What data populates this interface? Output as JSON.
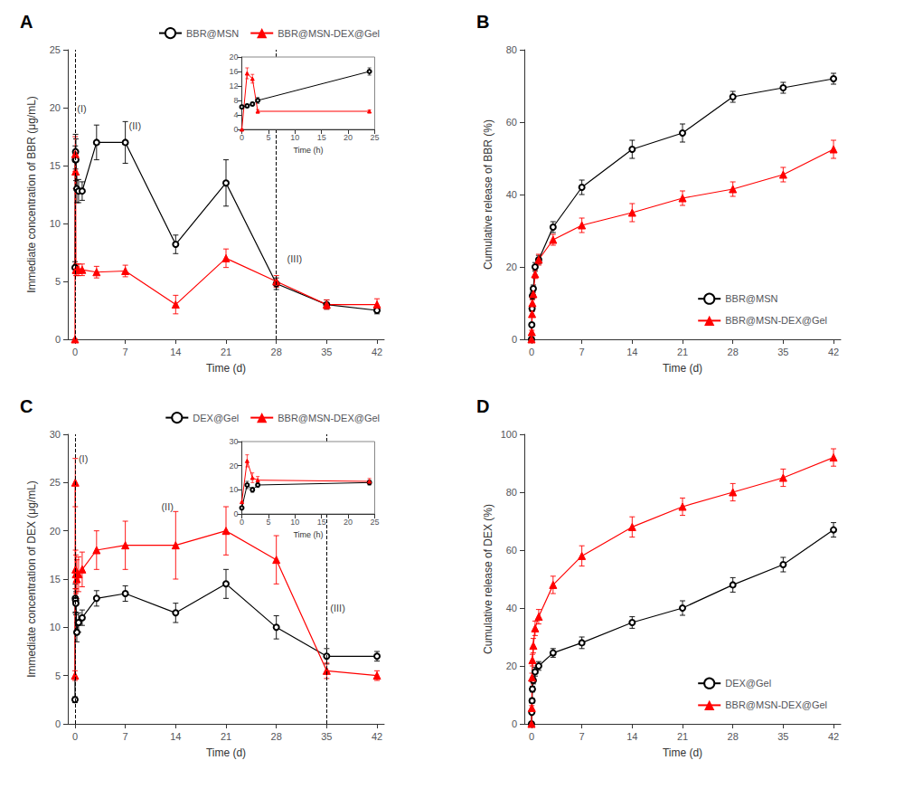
{
  "chart_data": [
    {
      "type": "line",
      "title": "A",
      "xlabel": "Time (d)",
      "ylabel": "Immediate concentration of BBR (μg/mL)",
      "xlim": [
        -1,
        43
      ],
      "xticks": [
        0,
        7,
        14,
        21,
        28,
        35,
        42
      ],
      "ylim": [
        0,
        25
      ],
      "yticks": [
        0,
        5,
        10,
        15,
        20,
        25
      ],
      "grid": false,
      "legend": "upper right",
      "series": [
        {
          "name": "BBR@MSN",
          "color": "black",
          "marker": "open_circle",
          "x": [
            0,
            0.04,
            0.08,
            0.125,
            0.25,
            0.5,
            1,
            3,
            7,
            14,
            21,
            28,
            35,
            42
          ],
          "values": [
            6.2,
            15.5,
            16.2,
            15.5,
            13.0,
            12.8,
            12.8,
            17.0,
            17.0,
            8.2,
            13.5,
            4.8,
            3.0,
            2.5
          ],
          "yerr": [
            0.5,
            1.2,
            1.5,
            1.8,
            1.2,
            1.0,
            0.8,
            1.5,
            1.8,
            0.8,
            2.0,
            0.5,
            0.4,
            0.3
          ]
        },
        {
          "name": "BBR@MSN-DEX@Gel",
          "color": "red",
          "marker": "triangle",
          "x": [
            0,
            0.04,
            0.08,
            0.125,
            0.25,
            0.5,
            1,
            3,
            7,
            14,
            21,
            28,
            35,
            42
          ],
          "values": [
            0.0,
            16.0,
            14.5,
            6.0,
            6.0,
            6.0,
            6.0,
            5.8,
            5.9,
            3.0,
            7.0,
            5.0,
            3.0,
            3.0
          ],
          "yerr": [
            0.0,
            1.5,
            1.5,
            0.5,
            0.5,
            0.5,
            0.5,
            0.5,
            0.5,
            0.8,
            0.8,
            0.5,
            0.4,
            0.5
          ]
        }
      ],
      "annotations": [
        {
          "text": "(I)",
          "x": 0.3,
          "y": 19.5
        },
        {
          "text": "(II)",
          "x": 7.5,
          "y": 18.0
        },
        {
          "text": "(III)",
          "x": 29.5,
          "y": 6.5
        }
      ],
      "vlines": [
        {
          "x": 0.08,
          "line_style": "dashed",
          "color": "black"
        },
        {
          "x": 28,
          "line_style": "dashed",
          "color": "black"
        }
      ],
      "inset": {
        "xlabel": "Time (h)",
        "xlim": [
          0,
          25
        ],
        "xticks": [
          0,
          5,
          10,
          15,
          20,
          25
        ],
        "ylim": [
          0,
          20
        ],
        "yticks": [
          0,
          4,
          8,
          12,
          16,
          20
        ],
        "series": [
          {
            "color": "black",
            "marker": "open_circle",
            "x": [
              0,
              1,
              2,
              3,
              24
            ],
            "values": [
              6.2,
              6.5,
              7.0,
              8.0,
              16.0
            ],
            "yerr": [
              0.5,
              0.5,
              0.5,
              0.8,
              1.0
            ]
          },
          {
            "color": "red",
            "marker": "triangle",
            "x": [
              0,
              1,
              2,
              3,
              24
            ],
            "values": [
              0.0,
              15.5,
              14.0,
              5.0,
              5.0
            ],
            "yerr": [
              0.0,
              1.5,
              1.2,
              0.5,
              0.4
            ]
          }
        ]
      }
    },
    {
      "type": "line",
      "title": "B",
      "xlabel": "Time (d)",
      "ylabel": "Cumulative release of BBR (%)",
      "xlim": [
        -1,
        43
      ],
      "xticks": [
        0,
        7,
        14,
        21,
        28,
        35,
        42
      ],
      "ylim": [
        0,
        80
      ],
      "yticks": [
        0,
        20,
        40,
        60,
        80
      ],
      "grid": false,
      "legend": "lower right",
      "series": [
        {
          "name": "BBR@MSN",
          "color": "black",
          "marker": "open_circle",
          "x": [
            0,
            0.04,
            0.08,
            0.125,
            0.25,
            0.5,
            1,
            3,
            7,
            14,
            21,
            28,
            35,
            42
          ],
          "values": [
            0,
            4.0,
            8.5,
            12.0,
            14.0,
            20.0,
            22.0,
            31.0,
            42.0,
            52.5,
            57.0,
            67.0,
            69.5,
            72.0
          ],
          "yerr": [
            0,
            0.5,
            0.8,
            1.0,
            1.0,
            1.2,
            1.2,
            1.5,
            2.0,
            2.5,
            2.5,
            1.5,
            1.5,
            1.5
          ]
        },
        {
          "name": "BBR@MSN-DEX@Gel",
          "color": "red",
          "marker": "triangle",
          "x": [
            0,
            0.04,
            0.08,
            0.125,
            0.25,
            0.5,
            1,
            3,
            7,
            14,
            21,
            28,
            35,
            42
          ],
          "values": [
            0,
            2.0,
            7.0,
            10.0,
            12.5,
            18.0,
            22.0,
            27.5,
            31.5,
            35.0,
            39.0,
            41.5,
            45.5,
            52.5
          ],
          "yerr": [
            0,
            0.5,
            0.8,
            1.0,
            1.0,
            1.2,
            1.5,
            1.5,
            2.0,
            2.5,
            2.0,
            2.0,
            2.0,
            2.5
          ]
        }
      ]
    },
    {
      "type": "line",
      "title": "C",
      "xlabel": "Time (d)",
      "ylabel": "Immediate concentration of DEX (μg/mL)",
      "xlim": [
        -1,
        43
      ],
      "xticks": [
        0,
        7,
        14,
        21,
        28,
        35,
        42
      ],
      "ylim": [
        0,
        30
      ],
      "yticks": [
        0,
        5,
        10,
        15,
        20,
        25,
        30
      ],
      "grid": false,
      "legend": "upper right",
      "series": [
        {
          "name": "DEX@Gel",
          "color": "black",
          "marker": "open_circle",
          "x": [
            0,
            0.04,
            0.08,
            0.125,
            0.25,
            0.5,
            1,
            3,
            7,
            14,
            21,
            28,
            35,
            42
          ],
          "values": [
            2.5,
            13.0,
            12.8,
            12.5,
            9.5,
            10.5,
            11.0,
            13.0,
            13.5,
            11.5,
            14.5,
            10.0,
            7.0,
            7.0
          ],
          "yerr": [
            0.3,
            1.5,
            1.2,
            1.2,
            1.0,
            1.0,
            0.8,
            0.8,
            0.8,
            1.0,
            1.5,
            1.2,
            0.8,
            0.5
          ]
        },
        {
          "name": "BBR@MSN-DEX@Gel",
          "color": "red",
          "marker": "triangle",
          "x": [
            0,
            0.04,
            0.08,
            0.125,
            0.25,
            0.5,
            1,
            3,
            7,
            14,
            21,
            28,
            35,
            42
          ],
          "values": [
            5.0,
            25.0,
            16.0,
            15.5,
            15.0,
            15.5,
            16.0,
            18.0,
            18.5,
            18.5,
            20.0,
            17.0,
            5.5,
            5.0
          ],
          "yerr": [
            0.5,
            2.5,
            2.0,
            2.0,
            2.0,
            1.8,
            1.8,
            2.0,
            2.5,
            3.5,
            2.5,
            2.5,
            0.8,
            0.5
          ]
        }
      ],
      "annotations": [
        {
          "text": "(I)",
          "x": 0.5,
          "y": 27.0
        },
        {
          "text": "(II)",
          "x": 12.0,
          "y": 22.0
        },
        {
          "text": "(III)",
          "x": 35.5,
          "y": 11.5
        }
      ],
      "vlines": [
        {
          "x": 0.08,
          "line_style": "dashed",
          "color": "black"
        },
        {
          "x": 35,
          "line_style": "dashed",
          "color": "black"
        }
      ],
      "inset": {
        "xlabel": "Time (h)",
        "xlim": [
          0,
          25
        ],
        "xticks": [
          0,
          5,
          10,
          15,
          20,
          25
        ],
        "ylim": [
          0,
          30
        ],
        "yticks": [
          0,
          10,
          20,
          30
        ],
        "series": [
          {
            "color": "black",
            "marker": "open_circle",
            "x": [
              0,
              1,
              2,
              3,
              24
            ],
            "values": [
              2.5,
              12.0,
              10.0,
              12.0,
              13.0
            ],
            "yerr": [
              0.3,
              1.5,
              1.0,
              1.0,
              1.0
            ]
          },
          {
            "color": "red",
            "marker": "triangle",
            "x": [
              0,
              1,
              2,
              3,
              24
            ],
            "values": [
              5.0,
              22.0,
              15.0,
              14.0,
              13.5
            ],
            "yerr": [
              0.5,
              2.5,
              2.0,
              1.5,
              1.2
            ]
          }
        ]
      }
    },
    {
      "type": "line",
      "title": "D",
      "xlabel": "Time (d)",
      "ylabel": "Cumulative release of DEX (%)",
      "xlim": [
        -1,
        43
      ],
      "xticks": [
        0,
        7,
        14,
        21,
        28,
        35,
        42
      ],
      "ylim": [
        0,
        100
      ],
      "yticks": [
        0,
        20,
        40,
        60,
        80,
        100
      ],
      "grid": false,
      "legend": "lower right",
      "series": [
        {
          "name": "DEX@Gel",
          "color": "black",
          "marker": "open_circle",
          "x": [
            0,
            0.04,
            0.08,
            0.125,
            0.25,
            0.5,
            1,
            3,
            7,
            14,
            21,
            28,
            35,
            42
          ],
          "values": [
            0,
            4.0,
            8.0,
            12.0,
            15.0,
            18.0,
            20.0,
            24.5,
            28.0,
            35.0,
            40.0,
            48.0,
            55.0,
            67.0
          ],
          "yerr": [
            0,
            0.5,
            0.8,
            1.0,
            1.2,
            1.5,
            1.5,
            1.5,
            2.0,
            2.0,
            2.5,
            2.5,
            2.5,
            2.5
          ]
        },
        {
          "name": "BBR@MSN-DEX@Gel",
          "color": "red",
          "marker": "triangle",
          "x": [
            0,
            0.04,
            0.08,
            0.125,
            0.25,
            0.5,
            1,
            3,
            7,
            14,
            21,
            28,
            35,
            42
          ],
          "values": [
            0,
            5.5,
            16.0,
            22.0,
            27.0,
            33.0,
            37.0,
            48.0,
            58.0,
            68.0,
            75.0,
            80.0,
            85.0,
            92.0
          ],
          "yerr": [
            0,
            0.8,
            1.5,
            2.0,
            2.5,
            2.5,
            2.5,
            3.0,
            3.5,
            3.5,
            3.0,
            3.0,
            3.0,
            3.0
          ]
        }
      ]
    }
  ]
}
